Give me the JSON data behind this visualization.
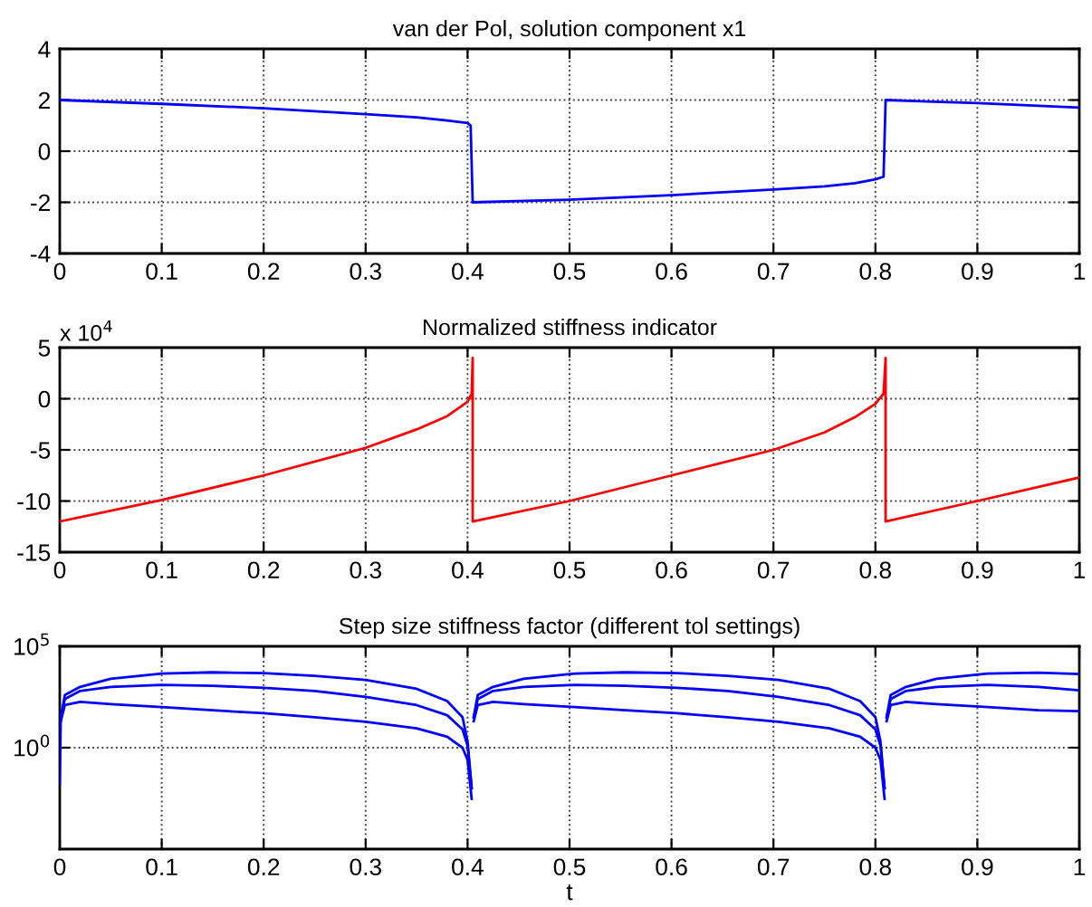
{
  "chart_data": [
    {
      "type": "line",
      "title": "van der Pol, solution component x1",
      "xlim": [
        0,
        1
      ],
      "xticks": [
        0,
        0.1,
        0.2,
        0.3,
        0.4,
        0.5,
        0.6,
        0.7,
        0.8,
        0.9,
        1
      ],
      "ylim": [
        -4,
        4
      ],
      "yticks": [
        -4,
        -2,
        0,
        2,
        4
      ],
      "grid": true,
      "series": [
        {
          "color": "#0000ff",
          "x": [
            0,
            0.1,
            0.2,
            0.3,
            0.35,
            0.38,
            0.4,
            0.403,
            0.405,
            0.5,
            0.6,
            0.7,
            0.75,
            0.78,
            0.8,
            0.808,
            0.81,
            0.9,
            1.0
          ],
          "values": [
            2.0,
            1.85,
            1.68,
            1.45,
            1.32,
            1.2,
            1.1,
            1.0,
            -2.0,
            -1.9,
            -1.72,
            -1.5,
            -1.38,
            -1.25,
            -1.1,
            -1.0,
            2.0,
            1.88,
            1.7
          ]
        }
      ]
    },
    {
      "type": "line",
      "title": "Normalized stiffness indicator",
      "annotations": [
        "x 10$^{4}$"
      ],
      "xlim": [
        0,
        1
      ],
      "xticks": [
        0,
        0.1,
        0.2,
        0.3,
        0.4,
        0.5,
        0.6,
        0.7,
        0.8,
        0.9,
        1
      ],
      "ylim": [
        -15,
        5
      ],
      "yticks": [
        -15,
        -10,
        -5,
        0,
        5
      ],
      "grid": true,
      "series": [
        {
          "color": "#ff0000",
          "x": [
            0,
            0.1,
            0.2,
            0.3,
            0.35,
            0.38,
            0.4,
            0.404,
            0.405,
            0.405,
            0.5,
            0.6,
            0.7,
            0.75,
            0.78,
            0.8,
            0.808,
            0.81,
            0.81,
            0.9,
            1.0
          ],
          "values": [
            -12,
            -9.9,
            -7.5,
            -4.8,
            -3.0,
            -1.7,
            -0.3,
            0.5,
            4,
            -12,
            -10,
            -7.5,
            -5,
            -3.3,
            -1.8,
            -0.5,
            0.5,
            4,
            -12,
            -10,
            -7.7
          ]
        }
      ]
    },
    {
      "type": "line",
      "title": "Step size stiffness factor (different tol settings)",
      "xlabel": "t",
      "log": "y",
      "xlim": [
        0,
        1
      ],
      "xticks": [
        0,
        0.1,
        0.2,
        0.3,
        0.4,
        0.5,
        0.6,
        0.7,
        0.8,
        0.9,
        1
      ],
      "ylim": [
        1e-05,
        100000.0
      ],
      "yticks": [
        {
          "value": 1,
          "label": "10$^{0}$"
        },
        {
          "value": 100000,
          "label": "10$^{5}$"
        }
      ],
      "grid": true,
      "series": [
        {
          "color": "#0000ff",
          "x": [
            0,
            0.001,
            0.005,
            0.02,
            0.05,
            0.1,
            0.15,
            0.2,
            0.25,
            0.3,
            0.35,
            0.38,
            0.395,
            0.4,
            0.404,
            0.405,
            0.406,
            0.41,
            0.425,
            0.455,
            0.505,
            0.555,
            0.605,
            0.655,
            0.705,
            0.755,
            0.785,
            0.8,
            0.805,
            0.809,
            0.81,
            0.811,
            0.815,
            0.83,
            0.86,
            0.91,
            0.96,
            1.0
          ],
          "values": [
            0.016,
            32,
            400,
            1000,
            2500,
            4500,
            5200,
            4800,
            3500,
            2200,
            800,
            200,
            32,
            2,
            0.01,
            null,
            32,
            400,
            1000,
            2500,
            4500,
            5200,
            4800,
            3500,
            2200,
            800,
            200,
            32,
            2,
            0.01,
            null,
            32,
            400,
            1000,
            2500,
            4500,
            5000,
            4300
          ]
        },
        {
          "color": "#0000ff",
          "x": [
            0.001,
            0.005,
            0.02,
            0.05,
            0.1,
            0.15,
            0.2,
            0.25,
            0.3,
            0.35,
            0.38,
            0.395,
            0.4,
            0.404,
            0.405,
            0.406,
            0.41,
            0.425,
            0.455,
            0.505,
            0.555,
            0.605,
            0.655,
            0.705,
            0.755,
            0.785,
            0.8,
            0.805,
            0.809,
            0.81,
            0.811,
            0.815,
            0.83,
            0.86,
            0.91,
            0.96,
            1.0
          ],
          "values": [
            32,
            250,
            630,
            1000,
            1260,
            1120,
            900,
            630,
            320,
            126,
            40,
            8,
            1.26,
            0.01,
            null,
            32,
            250,
            630,
            1000,
            1260,
            1120,
            900,
            630,
            320,
            126,
            40,
            8,
            1.26,
            0.01,
            null,
            32,
            250,
            630,
            1000,
            1260,
            1000,
            680
          ]
        },
        {
          "color": "#0000ff",
          "x": [
            0.001,
            0.005,
            0.02,
            0.05,
            0.1,
            0.15,
            0.2,
            0.25,
            0.3,
            0.35,
            0.38,
            0.395,
            0.4,
            0.404,
            0.405,
            0.406,
            0.41,
            0.425,
            0.455,
            0.505,
            0.555,
            0.605,
            0.655,
            0.705,
            0.755,
            0.785,
            0.8,
            0.805,
            0.809,
            0.81,
            0.811,
            0.815,
            0.83,
            0.86,
            0.91,
            0.96,
            1.0
          ],
          "values": [
            20,
            126,
            180,
            140,
            100,
            70,
            50,
            32,
            19,
            9,
            3.5,
            1,
            0.25,
            0.003,
            null,
            20,
            126,
            180,
            140,
            100,
            70,
            50,
            32,
            19,
            9,
            3.5,
            1,
            0.25,
            0.003,
            null,
            20,
            126,
            180,
            140,
            100,
            70,
            63
          ]
        }
      ]
    }
  ]
}
